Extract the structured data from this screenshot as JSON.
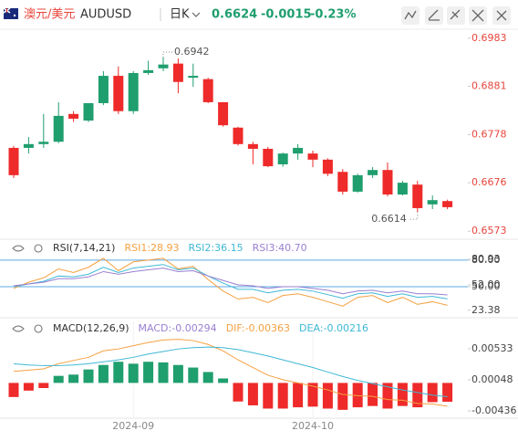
{
  "header": {
    "name": "澳元/美元",
    "symbol": "AUDUSD",
    "period": "日K",
    "price": "0.6624",
    "change": "-0.0015",
    "change_pct": "-0.23%"
  },
  "chart_data": [
    {
      "type": "candlestick",
      "up_color": "#1f9e6e",
      "down_color": "#ee2a2a",
      "open": [
        0.675,
        0.675,
        0.6758,
        0.6763,
        0.6822,
        0.6808,
        0.6845,
        0.6903,
        0.6828,
        0.6909,
        0.6919,
        0.6929,
        0.6899,
        0.6896,
        0.6847,
        0.6793,
        0.6758,
        0.6748,
        0.6715,
        0.6738,
        0.6738,
        0.6725,
        0.6699,
        0.6657,
        0.6692,
        0.6703,
        0.6651,
        0.6672,
        0.663,
        0.6637
      ],
      "high": [
        0.6754,
        0.6773,
        0.6822,
        0.6847,
        0.6828,
        0.6845,
        0.6913,
        0.6923,
        0.6913,
        0.6935,
        0.6942,
        0.694,
        0.6929,
        0.6899,
        0.6847,
        0.6795,
        0.6763,
        0.6752,
        0.674,
        0.6758,
        0.6744,
        0.6728,
        0.6705,
        0.6695,
        0.6709,
        0.6719,
        0.668,
        0.668,
        0.6649,
        0.664
      ],
      "low": [
        0.6686,
        0.6738,
        0.675,
        0.676,
        0.6805,
        0.6805,
        0.6841,
        0.6822,
        0.6822,
        0.6905,
        0.6913,
        0.6866,
        0.688,
        0.6845,
        0.6795,
        0.6755,
        0.6715,
        0.6709,
        0.671,
        0.6725,
        0.6709,
        0.669,
        0.6651,
        0.6655,
        0.6686,
        0.6647,
        0.6649,
        0.6614,
        0.662,
        0.662
      ],
      "close": [
        0.6692,
        0.6758,
        0.6763,
        0.6818,
        0.6812,
        0.6845,
        0.6903,
        0.6828,
        0.6909,
        0.6915,
        0.6927,
        0.689,
        0.6903,
        0.6847,
        0.6798,
        0.6758,
        0.6748,
        0.6711,
        0.6738,
        0.675,
        0.6725,
        0.6695,
        0.6657,
        0.6692,
        0.6703,
        0.6651,
        0.6676,
        0.6622,
        0.6639,
        0.6624
      ],
      "ylim": [
        0.6556,
        0.7002
      ],
      "yticks": [
        0.6983,
        0.6881,
        0.6778,
        0.6676,
        0.6573
      ],
      "annotations": [
        {
          "text": "0.6942",
          "value": 0.6942,
          "kind": "high"
        },
        {
          "text": "0.6614",
          "value": 0.6614,
          "kind": "low"
        }
      ]
    },
    {
      "type": "line",
      "title": "RSI(7,14,21)",
      "series": [
        {
          "name": "RSI1:28.93",
          "color": "#f5a142",
          "values": [
            48,
            55,
            60,
            70,
            66,
            72,
            82,
            68,
            78,
            80,
            82,
            70,
            73,
            58,
            45,
            36,
            38,
            32,
            40,
            42,
            38,
            33,
            28,
            38,
            40,
            32,
            38,
            30,
            33,
            28.93
          ]
        },
        {
          "name": "RSI2:36.15",
          "color": "#3fb8d6",
          "values": [
            50,
            53,
            56,
            62,
            61,
            64,
            72,
            66,
            71,
            73,
            75,
            69,
            71,
            62,
            54,
            47,
            47,
            43,
            46,
            47,
            45,
            41,
            37,
            42,
            43,
            39,
            42,
            38,
            39,
            36.15
          ]
        },
        {
          "name": "RSI3:40.70",
          "color": "#9a7fd1",
          "values": [
            51,
            53,
            55,
            59,
            59,
            61,
            67,
            64,
            67,
            69,
            71,
            67,
            68,
            62,
            57,
            52,
            51,
            48,
            50,
            50,
            48,
            46,
            42,
            45,
            46,
            43,
            45,
            42,
            42,
            40.7
          ]
        }
      ],
      "ylim": [
        18,
        85
      ],
      "yticks": [
        {
          "value": 80,
          "label": "80.00"
        },
        80.93,
        {
          "value": 52,
          "label": "52.00"
        },
        {
          "value": 50,
          "label": "50.00"
        },
        23.38
      ],
      "ref_lines": [
        80,
        50
      ],
      "ref_color": "#5aa9e6"
    },
    {
      "type": "macd",
      "title": "MACD(12,26,9)",
      "categories": [
        null,
        null,
        null,
        null,
        null,
        null,
        null,
        null,
        "2024-09",
        null,
        null,
        null,
        null,
        null,
        null,
        null,
        null,
        null,
        null,
        null,
        "2024-10",
        null,
        null,
        null,
        null,
        null,
        null,
        null,
        null,
        null
      ],
      "series": [
        {
          "name": "MACD:-0.00294",
          "color": "#9a7fd1",
          "up_color": "#1f9e6e",
          "down_color": "#ee2a2a",
          "kind": "bar",
          "values": [
            -0.0022,
            -0.0012,
            -0.0008,
            0.0011,
            0.0013,
            0.0021,
            0.0028,
            0.0033,
            0.003,
            0.0033,
            0.0032,
            0.0028,
            0.0024,
            0.0017,
            0.0007,
            -0.0029,
            -0.0035,
            -0.004,
            -0.004,
            -0.0038,
            -0.0037,
            -0.004,
            -0.0042,
            -0.0038,
            -0.0036,
            -0.004,
            -0.0036,
            -0.0038,
            -0.003,
            -0.00294
          ]
        },
        {
          "name": "DIF:-0.00363",
          "color": "#f5a142",
          "kind": "line",
          "values": [
            0.0018,
            0.002,
            0.0022,
            0.003,
            0.0035,
            0.004,
            0.005,
            0.0053,
            0.0058,
            0.0063,
            0.0067,
            0.0068,
            0.0066,
            0.006,
            0.005,
            0.0036,
            0.0024,
            0.0012,
            0.0005,
            0.0,
            -0.0005,
            -0.0011,
            -0.0018,
            -0.002,
            -0.0021,
            -0.0026,
            -0.0027,
            -0.0032,
            -0.0033,
            -0.00363
          ]
        },
        {
          "name": "DEA:-0.00216",
          "color": "#3fb8d6",
          "kind": "line",
          "values": [
            0.003,
            0.0028,
            0.0027,
            0.0027,
            0.0028,
            0.003,
            0.0033,
            0.0036,
            0.004,
            0.0045,
            0.0049,
            0.0053,
            0.0055,
            0.0056,
            0.0055,
            0.0052,
            0.0047,
            0.0042,
            0.0036,
            0.003,
            0.0024,
            0.0017,
            0.001,
            0.0004,
            -0.0001,
            -0.0006,
            -0.0011,
            -0.0015,
            -0.0019,
            -0.00216
          ]
        }
      ],
      "ylim": [
        -0.0055,
        0.0096
      ],
      "yticks": [
        0.00533,
        0.00048,
        -0.00436
      ]
    }
  ]
}
